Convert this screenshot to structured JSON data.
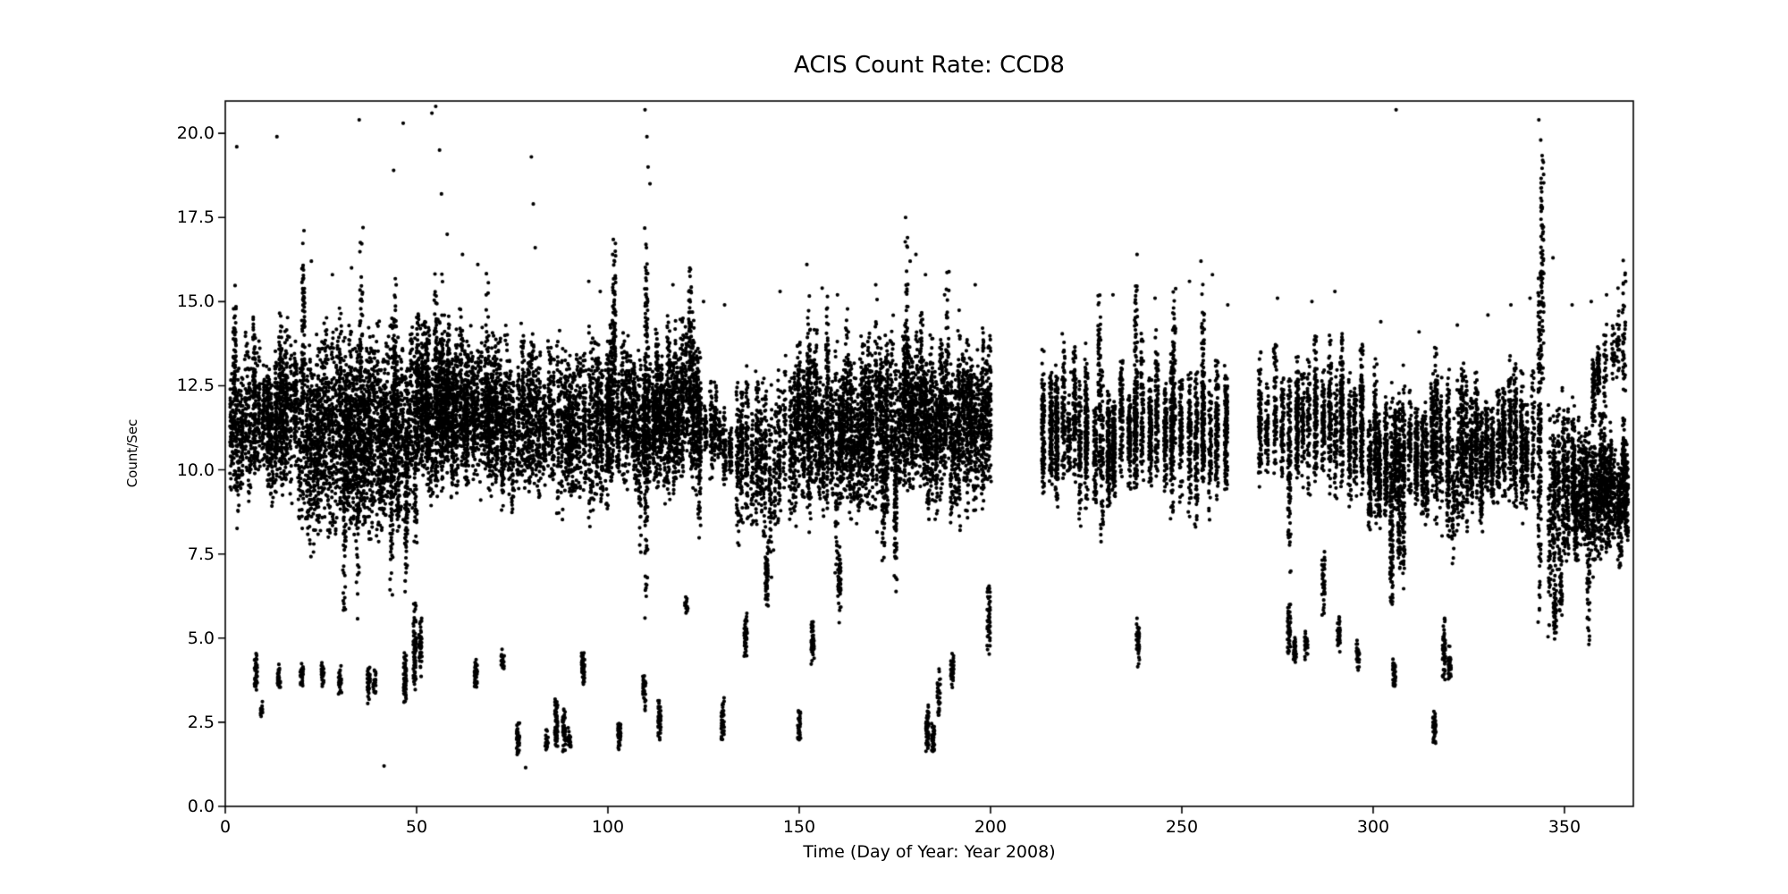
{
  "figure": {
    "background": "#ffffff"
  },
  "chart_data": {
    "type": "scatter",
    "title": "ACIS Count Rate: CCD8",
    "xlabel": "Time (Day of Year: Year 2008)",
    "ylabel": "Count/Sec",
    "xlim": [
      0,
      368
    ],
    "ylim": [
      0,
      20.96
    ],
    "xticks": [
      0,
      50,
      100,
      150,
      200,
      250,
      300,
      350
    ],
    "yticks": [
      0.0,
      2.5,
      5.0,
      7.5,
      10.0,
      12.5,
      15.0,
      17.5,
      20.0
    ],
    "grid": false,
    "legend": null,
    "marker": {
      "color": "#000000",
      "radius": 2.1
    },
    "description": "Dense vertical stripes of black points (one stripe per observation). Main band ~8-15 count/sec across the year, scattered low-rate stripes at 1.5-7 count/sec, occasional flare spikes to ~20.8, data gaps near days 201-212 and 263-269.",
    "bands": [
      [
        1,
        20,
        8.6,
        15.0,
        1.0,
        85
      ],
      [
        20,
        50,
        7.2,
        15.2,
        0.9,
        90
      ],
      [
        50,
        68,
        8.8,
        15.2,
        0.9,
        90
      ],
      [
        68,
        100,
        8.2,
        14.8,
        1.1,
        80
      ],
      [
        100,
        124,
        8.6,
        15.0,
        1.0,
        85
      ],
      [
        124,
        133,
        9.2,
        13.2,
        1.4,
        45
      ],
      [
        133,
        147,
        7.2,
        14.0,
        1.2,
        70
      ],
      [
        147,
        171,
        7.8,
        14.6,
        1.0,
        85
      ],
      [
        171,
        200,
        8.2,
        15.0,
        1.0,
        90
      ],
      [
        212,
        263,
        8.2,
        14.2,
        1.9,
        110
      ],
      [
        269,
        298,
        8.4,
        14.6,
        1.8,
        100
      ],
      [
        298,
        342,
        7.8,
        13.6,
        1.4,
        95
      ],
      [
        345,
        352,
        6.2,
        13.0,
        1.2,
        80
      ],
      [
        352,
        366.5,
        6.6,
        12.2,
        0.8,
        85
      ],
      [
        357,
        366.5,
        11.2,
        15.2,
        1.6,
        45
      ]
    ],
    "stripes": [
      [
        8,
        3.3,
        4.6,
        40
      ],
      [
        9.6,
        2.6,
        3.2,
        12
      ],
      [
        14,
        3.4,
        4.3,
        35
      ],
      [
        20,
        3.4,
        4.4,
        30
      ],
      [
        25.5,
        3.5,
        4.4,
        30
      ],
      [
        30,
        3.3,
        4.2,
        28
      ],
      [
        35.5,
        9.0,
        17.3,
        60
      ],
      [
        37.5,
        3.0,
        4.3,
        35
      ],
      [
        39,
        3.2,
        4.2,
        20
      ],
      [
        44.5,
        9.0,
        16.0,
        45
      ],
      [
        47,
        3.0,
        4.6,
        55
      ],
      [
        49.5,
        3.1,
        6.3,
        70
      ],
      [
        51,
        3.8,
        5.8,
        40
      ],
      [
        55,
        10.0,
        16.3,
        50
      ],
      [
        57,
        9.0,
        16.0,
        50
      ],
      [
        65.5,
        3.4,
        4.5,
        40
      ],
      [
        68.5,
        9.0,
        16.5,
        40
      ],
      [
        72.5,
        4.0,
        4.7,
        25
      ],
      [
        76.5,
        1.4,
        2.6,
        45
      ],
      [
        84,
        1.6,
        2.3,
        18
      ],
      [
        86.5,
        1.5,
        3.4,
        70
      ],
      [
        88.5,
        1.5,
        3.0,
        50
      ],
      [
        90,
        1.6,
        2.4,
        20
      ],
      [
        93.5,
        3.6,
        4.7,
        45
      ],
      [
        103,
        1.6,
        2.6,
        40
      ],
      [
        109.5,
        2.6,
        4.1,
        30
      ],
      [
        110,
        5.2,
        18.3,
        160
      ],
      [
        113.5,
        1.8,
        3.3,
        40
      ],
      [
        120.5,
        5.5,
        6.3,
        15
      ],
      [
        130,
        1.8,
        3.3,
        40
      ],
      [
        136,
        4.4,
        5.9,
        45
      ],
      [
        141.5,
        5.8,
        8.2,
        55
      ],
      [
        150,
        1.9,
        3.0,
        35
      ],
      [
        152.5,
        8.0,
        16.0,
        70
      ],
      [
        153.5,
        4.1,
        5.6,
        45
      ],
      [
        160.5,
        5.4,
        8.0,
        50
      ],
      [
        178,
        9.0,
        17.4,
        70
      ],
      [
        183.5,
        1.5,
        3.1,
        55
      ],
      [
        185,
        1.4,
        2.6,
        45
      ],
      [
        186.5,
        2.4,
        4.2,
        30
      ],
      [
        190,
        3.4,
        4.6,
        35
      ],
      [
        199.5,
        4.4,
        6.7,
        50
      ],
      [
        228.5,
        9.0,
        15.6,
        70
      ],
      [
        238,
        9.0,
        16.5,
        90
      ],
      [
        238.5,
        4.0,
        5.7,
        45
      ],
      [
        248,
        9.0,
        15.8,
        70
      ],
      [
        255.5,
        9.0,
        16.3,
        80
      ],
      [
        278,
        4.3,
        6.1,
        60
      ],
      [
        279.5,
        4.2,
        5.2,
        30
      ],
      [
        282.5,
        4.3,
        5.4,
        30
      ],
      [
        287,
        5.4,
        7.7,
        45
      ],
      [
        291,
        4.5,
        5.7,
        35
      ],
      [
        296,
        4.0,
        5.1,
        30
      ],
      [
        305.5,
        3.4,
        4.5,
        35
      ],
      [
        316,
        1.7,
        2.9,
        40
      ],
      [
        318.5,
        3.5,
        5.7,
        55
      ],
      [
        320,
        3.6,
        4.9,
        35
      ],
      [
        343.5,
        5.2,
        16.5,
        150
      ],
      [
        344.2,
        12.0,
        20.4,
        80
      ],
      [
        347.5,
        4.8,
        7.0,
        50
      ],
      [
        349,
        5.2,
        7.5,
        40
      ]
    ],
    "outliers": [
      [
        3,
        19.6
      ],
      [
        13.5,
        19.9
      ],
      [
        22.5,
        16.2
      ],
      [
        28,
        15.8
      ],
      [
        33,
        16.0
      ],
      [
        35,
        20.4
      ],
      [
        36,
        17.2
      ],
      [
        41.5,
        1.2
      ],
      [
        44,
        18.9
      ],
      [
        46.5,
        20.3
      ],
      [
        54,
        20.6
      ],
      [
        55,
        20.8
      ],
      [
        56,
        19.5
      ],
      [
        56.5,
        18.2
      ],
      [
        58,
        17.0
      ],
      [
        62,
        16.4
      ],
      [
        66,
        16.1
      ],
      [
        78.5,
        1.15
      ],
      [
        80,
        19.3
      ],
      [
        80.5,
        17.9
      ],
      [
        81,
        16.6
      ],
      [
        95,
        15.6
      ],
      [
        98,
        15.3
      ],
      [
        109.7,
        20.7
      ],
      [
        110.2,
        19.9
      ],
      [
        110.5,
        19.0
      ],
      [
        111,
        18.5
      ],
      [
        117,
        15.5
      ],
      [
        125,
        15.0
      ],
      [
        130.5,
        14.9
      ],
      [
        145,
        15.3
      ],
      [
        152,
        16.1
      ],
      [
        156,
        15.4
      ],
      [
        160,
        15.2
      ],
      [
        170,
        15.5
      ],
      [
        177.8,
        17.5
      ],
      [
        178.3,
        16.9
      ],
      [
        179,
        16.2
      ],
      [
        180.5,
        16.4
      ],
      [
        183,
        15.8
      ],
      [
        188,
        15.2
      ],
      [
        196,
        15.5
      ],
      [
        221,
        12.9
      ],
      [
        232,
        15.2
      ],
      [
        238.3,
        16.4
      ],
      [
        243,
        15.1
      ],
      [
        252,
        15.6
      ],
      [
        255,
        16.2
      ],
      [
        258,
        15.8
      ],
      [
        262,
        14.9
      ],
      [
        275,
        15.1
      ],
      [
        284,
        15.0
      ],
      [
        290,
        15.3
      ],
      [
        302,
        14.4
      ],
      [
        306,
        20.7
      ],
      [
        312,
        14.1
      ],
      [
        322,
        14.3
      ],
      [
        330,
        14.6
      ],
      [
        336,
        14.9
      ],
      [
        341,
        15.1
      ],
      [
        343.3,
        20.4
      ],
      [
        343.8,
        19.8
      ],
      [
        344.3,
        19.2
      ],
      [
        347,
        16.3
      ],
      [
        352,
        14.9
      ],
      [
        357,
        15.0
      ],
      [
        361,
        15.2
      ],
      [
        364,
        15.4
      ],
      [
        366,
        15.6
      ]
    ]
  }
}
